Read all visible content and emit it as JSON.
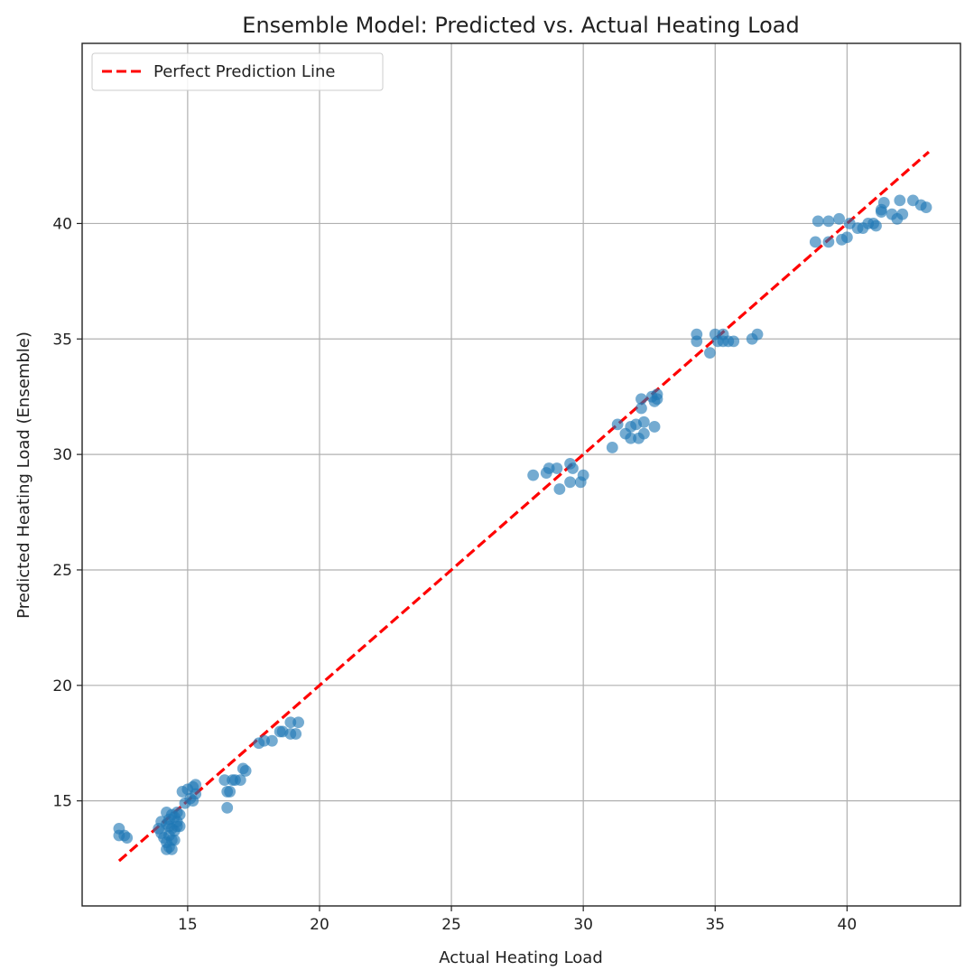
{
  "chart_data": {
    "type": "scatter",
    "title": "Ensemble Model: Predicted vs. Actual Heating Load",
    "xlabel": "Actual Heating Load",
    "ylabel": "Predicted Heating Load (Ensemble)",
    "xlim": [
      11.0,
      44.3
    ],
    "ylim": [
      10.45,
      47.8
    ],
    "xticks": [
      15,
      20,
      25,
      30,
      35,
      40
    ],
    "yticks": [
      15,
      20,
      25,
      30,
      35,
      40
    ],
    "grid": true,
    "legend": {
      "position": "top-left",
      "entries": [
        "Perfect Prediction Line"
      ]
    },
    "reference_line": {
      "name": "Perfect Prediction Line",
      "color": "#ff0000",
      "style": "dashed",
      "x": [
        12.4,
        43.1
      ],
      "y": [
        12.4,
        43.1
      ]
    },
    "series": [
      {
        "name": "Predictions",
        "color": "#1f77b4",
        "points": [
          [
            12.4,
            13.8
          ],
          [
            12.4,
            13.5
          ],
          [
            12.6,
            13.5
          ],
          [
            12.7,
            13.4
          ],
          [
            13.9,
            13.8
          ],
          [
            14.0,
            14.1
          ],
          [
            14.0,
            13.6
          ],
          [
            14.1,
            13.4
          ],
          [
            14.2,
            14.5
          ],
          [
            14.2,
            14.0
          ],
          [
            14.2,
            13.2
          ],
          [
            14.2,
            12.9
          ],
          [
            14.3,
            14.2
          ],
          [
            14.3,
            13.9
          ],
          [
            14.3,
            13.5
          ],
          [
            14.3,
            13.0
          ],
          [
            14.4,
            14.4
          ],
          [
            14.4,
            13.8
          ],
          [
            14.4,
            13.3
          ],
          [
            14.4,
            12.9
          ],
          [
            14.5,
            14.3
          ],
          [
            14.5,
            13.7
          ],
          [
            14.5,
            13.3
          ],
          [
            14.6,
            14.5
          ],
          [
            14.6,
            14.1
          ],
          [
            14.6,
            13.9
          ],
          [
            14.7,
            14.4
          ],
          [
            14.7,
            13.9
          ],
          [
            14.8,
            15.4
          ],
          [
            14.9,
            14.9
          ],
          [
            15.0,
            15.5
          ],
          [
            15.1,
            15.1
          ],
          [
            15.2,
            15.6
          ],
          [
            15.2,
            15.0
          ],
          [
            15.3,
            15.7
          ],
          [
            15.3,
            15.3
          ],
          [
            16.4,
            15.9
          ],
          [
            16.5,
            15.4
          ],
          [
            16.5,
            14.7
          ],
          [
            16.6,
            15.4
          ],
          [
            16.7,
            15.9
          ],
          [
            16.8,
            15.9
          ],
          [
            17.0,
            15.9
          ],
          [
            17.1,
            16.4
          ],
          [
            17.2,
            16.3
          ],
          [
            17.7,
            17.5
          ],
          [
            17.9,
            17.6
          ],
          [
            18.2,
            17.6
          ],
          [
            18.5,
            18.0
          ],
          [
            18.6,
            18.0
          ],
          [
            18.9,
            17.9
          ],
          [
            18.9,
            18.4
          ],
          [
            19.1,
            17.9
          ],
          [
            19.2,
            18.4
          ],
          [
            28.1,
            29.1
          ],
          [
            28.6,
            29.2
          ],
          [
            28.7,
            29.4
          ],
          [
            29.0,
            29.4
          ],
          [
            29.1,
            28.5
          ],
          [
            29.5,
            29.6
          ],
          [
            29.5,
            28.8
          ],
          [
            29.6,
            29.4
          ],
          [
            29.9,
            28.8
          ],
          [
            30.0,
            29.1
          ],
          [
            31.1,
            30.3
          ],
          [
            31.3,
            31.3
          ],
          [
            31.6,
            30.9
          ],
          [
            31.8,
            31.2
          ],
          [
            31.8,
            30.7
          ],
          [
            32.0,
            31.3
          ],
          [
            32.1,
            30.7
          ],
          [
            32.2,
            32.4
          ],
          [
            32.2,
            32.0
          ],
          [
            32.3,
            31.4
          ],
          [
            32.3,
            30.9
          ],
          [
            32.6,
            32.5
          ],
          [
            32.7,
            32.3
          ],
          [
            32.7,
            31.2
          ],
          [
            32.8,
            32.6
          ],
          [
            32.8,
            32.4
          ],
          [
            34.3,
            35.2
          ],
          [
            34.3,
            34.9
          ],
          [
            34.8,
            34.4
          ],
          [
            35.0,
            35.2
          ],
          [
            35.1,
            34.9
          ],
          [
            35.3,
            35.2
          ],
          [
            35.3,
            34.9
          ],
          [
            35.5,
            34.9
          ],
          [
            35.7,
            34.9
          ],
          [
            36.4,
            35.0
          ],
          [
            36.6,
            35.2
          ],
          [
            38.8,
            39.2
          ],
          [
            38.9,
            40.1
          ],
          [
            39.3,
            39.2
          ],
          [
            39.3,
            40.1
          ],
          [
            39.7,
            40.2
          ],
          [
            39.8,
            39.3
          ],
          [
            40.0,
            39.4
          ],
          [
            40.1,
            40.0
          ],
          [
            40.4,
            39.8
          ],
          [
            40.6,
            39.8
          ],
          [
            40.8,
            40.0
          ],
          [
            41.0,
            40.0
          ],
          [
            41.1,
            39.9
          ],
          [
            41.3,
            40.6
          ],
          [
            41.3,
            40.5
          ],
          [
            41.4,
            40.9
          ],
          [
            41.7,
            40.4
          ],
          [
            41.9,
            40.2
          ],
          [
            42.0,
            41.0
          ],
          [
            42.1,
            40.4
          ],
          [
            42.5,
            41.0
          ],
          [
            42.8,
            40.8
          ],
          [
            43.0,
            40.7
          ]
        ]
      }
    ]
  }
}
